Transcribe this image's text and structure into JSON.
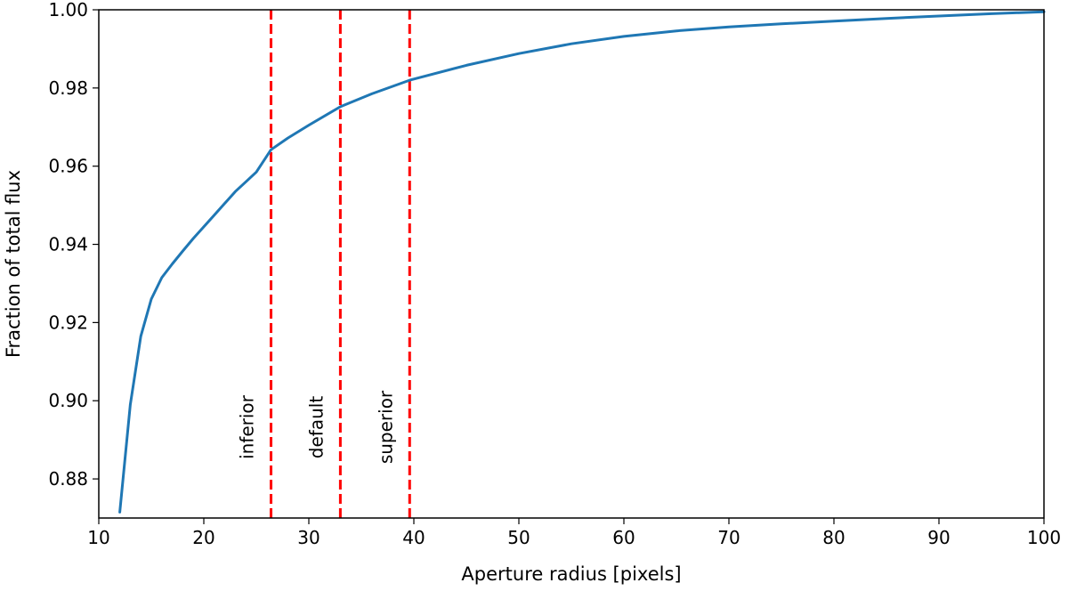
{
  "chart_data": {
    "type": "line",
    "title": "",
    "xlabel": "Aperture radius [pixels]",
    "ylabel": "Fraction of total flux",
    "xlim": [
      10,
      100
    ],
    "ylim": [
      0.87,
      1.0
    ],
    "x_ticks": [
      10,
      20,
      30,
      40,
      50,
      60,
      70,
      80,
      90,
      100
    ],
    "y_ticks": [
      0.88,
      0.9,
      0.92,
      0.94,
      0.96,
      0.98,
      1.0
    ],
    "x_tick_labels": [
      "10",
      "20",
      "30",
      "40",
      "50",
      "60",
      "70",
      "80",
      "90",
      "100"
    ],
    "y_tick_labels": [
      "0.88",
      "0.90",
      "0.92",
      "0.94",
      "0.96",
      "0.98",
      "1.00"
    ],
    "grid": false,
    "series": [
      {
        "color": "#1f77b4",
        "x": [
          12,
          13,
          14,
          15,
          16,
          17,
          18,
          19,
          20,
          21,
          22,
          23,
          24,
          25,
          26.4,
          28,
          30,
          33,
          36,
          39.6,
          45,
          50,
          55,
          60,
          65,
          70,
          75,
          80,
          85,
          90,
          95,
          100
        ],
        "y": [
          0.8715,
          0.899,
          0.9165,
          0.926,
          0.9315,
          0.935,
          0.9383,
          0.9415,
          0.9445,
          0.9475,
          0.9505,
          0.9535,
          0.956,
          0.9585,
          0.9642,
          0.9672,
          0.9705,
          0.9752,
          0.9785,
          0.982,
          0.9858,
          0.9888,
          0.9913,
          0.9932,
          0.9946,
          0.9956,
          0.9964,
          0.9971,
          0.9978,
          0.9984,
          0.999,
          0.9995
        ]
      }
    ],
    "vlines": [
      {
        "x": 26.4,
        "label": "inferior",
        "color": "#ff0000"
      },
      {
        "x": 33.0,
        "label": "default",
        "color": "#ff0000"
      },
      {
        "x": 39.6,
        "label": "superior",
        "color": "#ff0000"
      }
    ]
  }
}
